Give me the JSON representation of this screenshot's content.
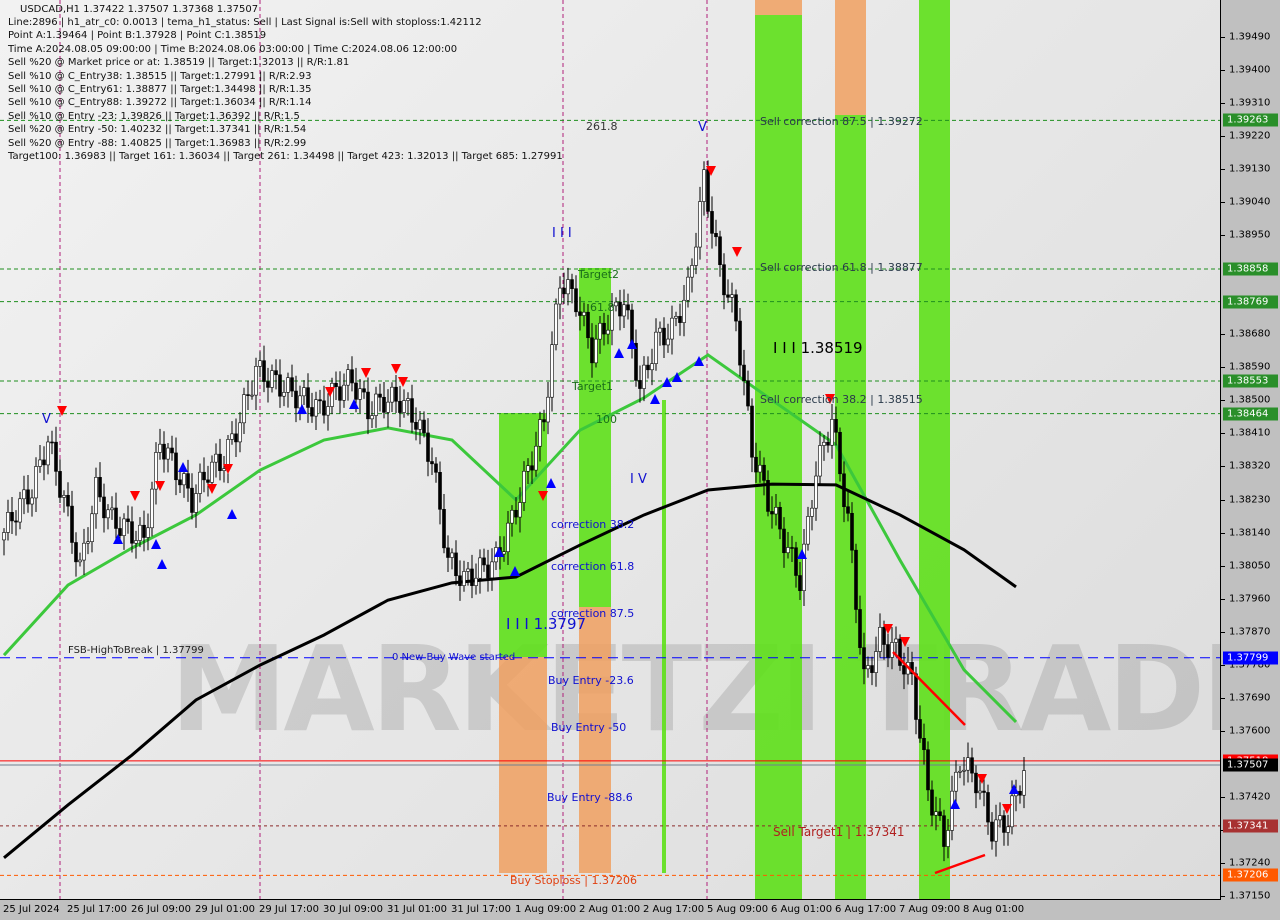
{
  "header": {
    "symbol_line": "USDCAD,H1  1.37422 1.37507 1.37368 1.37507",
    "info_lines": [
      "Line:2896 | h1_atr_c0: 0.0013 | tema_h1_status: Sell | Last Signal is:Sell with stoploss:1.42112",
      "Point A:1.39464 | Point B:1.37928 | Point C:1.38519",
      "Time A:2024.08.05 09:00:00 | Time B:2024.08.06 03:00:00 | Time C:2024.08.06 12:00:00",
      "Sell %20 @ Market price or at: 1.38519 || Target:1.32013 || R/R:1.81",
      "Sell %10 @ C_Entry38: 1.38515 || Target:1.27991 || R/R:2.93",
      "Sell %10 @ C_Entry61: 1.38877 || Target:1.34498 || R/R:1.35",
      "Sell %10 @ C_Entry88: 1.39272 || Target:1.36034 || R/R:1.14",
      "Sell %10 @ Entry -23: 1.39826 || Target:1.36392 || R/R:1.5",
      "Sell %20 @ Entry -50: 1.40232 || Target:1.37341 || R/R:1.54",
      "Sell %20 @ Entry -88: 1.40825 || Target:1.36983 || R/R:2.99",
      "Target100: 1.36983 || Target 161: 1.36034 || Target 261: 1.34498 || Target 423: 1.32013 || Target 685: 1.27991"
    ]
  },
  "watermark": "MARKETZI TRADE",
  "annotations": {
    "fib_261": "261.8",
    "wave_iii_top": "I I I",
    "target2": "Target2",
    "fib_618": "61.8",
    "target1": "Target1",
    "fib_100": "100",
    "wave_iv": "I V",
    "wave_v_left": "V",
    "wave_v_top": "V",
    "correction_382": "correction 38.2",
    "correction_618": "correction 61.8",
    "correction_875": "correction 87.5",
    "wave_iii_buy": "I I I 1.3797",
    "new_buy_wave": "0 New Buy Wave started",
    "fsb_high": "FSB-HighToBreak | 1.37799",
    "buy_entry_236": "Buy Entry -23.6",
    "buy_entry_50": "Buy Entry -50",
    "buy_entry_886": "Buy Entry -88.6",
    "buy_stoploss": "Buy Stoploss | 1.37206",
    "sell_target1": "Sell Target1 | 1.37341",
    "sell_corr_875": "Sell correction 87.5 | 1.39272",
    "sell_corr_618": "Sell correction 61.8 | 1.38877",
    "wave_iii_sell": "I I I 1.38519",
    "sell_corr_382": "Sell correction 38.2 | 1.38515"
  },
  "colors": {
    "background": "#e6e6e6",
    "zone_green": "#5ee01a",
    "zone_orange": "#f0a060",
    "ma_fast": "#3cc83c",
    "ma_slow": "#000000",
    "bull_candle": "#ffffff",
    "bear_candle": "#000000",
    "level_green": "#1f8f1f",
    "level_blue": "#0000ff",
    "current_price": "#000000",
    "red_line": "#ff0000",
    "stoploss": "#ff5a00",
    "sell_target": "#a83232"
  },
  "chart_data": {
    "type": "candlestick",
    "symbol": "USDCAD",
    "timeframe": "H1",
    "ylim": [
      1.3711,
      1.3955
    ],
    "grid": false,
    "y_ticks": [
      "1.39490",
      "1.39400",
      "1.39310",
      "1.39220",
      "1.39130",
      "1.39040",
      "1.38950",
      "1.38680",
      "1.38590",
      "1.38500",
      "1.38410",
      "1.38320",
      "1.38230",
      "1.38140",
      "1.38050",
      "1.37960",
      "1.37870",
      "1.37780",
      "1.37690",
      "1.37600",
      "1.37420",
      "1.37330",
      "1.37240",
      "1.37150"
    ],
    "x_ticks": [
      "25 Jul 2024",
      "25 Jul 17:00",
      "26 Jul 09:00",
      "29 Jul 01:00",
      "29 Jul 17:00",
      "30 Jul 09:00",
      "31 Jul 01:00",
      "31 Jul 17:00",
      "1 Aug 09:00",
      "2 Aug 01:00",
      "2 Aug 17:00",
      "5 Aug 09:00",
      "6 Aug 01:00",
      "6 Aug 17:00",
      "7 Aug 09:00",
      "8 Aug 01:00"
    ],
    "close_every_4_bars": [
      1.3812,
      1.38201,
      1.38256,
      1.38392,
      1.38229,
      1.38038,
      1.38256,
      1.38174,
      1.38147,
      1.3812,
      1.38392,
      1.3831,
      1.38229,
      1.3831,
      1.38338,
      1.38447,
      1.38583,
      1.38556,
      1.38528,
      1.38501,
      1.38474,
      1.38528,
      1.38556,
      1.38474,
      1.38501,
      1.38501,
      1.38447,
      1.38338,
      1.38065,
      1.38011,
      1.38038,
      1.38065,
      1.38174,
      1.3831,
      1.38447,
      1.38828,
      1.38774,
      1.38637,
      1.38719,
      1.38774,
      1.38528,
      1.38665,
      1.38692,
      1.38801,
      1.391,
      1.38855,
      1.38719,
      1.38365,
      1.38229,
      1.3812,
      1.38011,
      1.3831,
      1.38447,
      1.38174,
      1.37738,
      1.37847,
      1.3782,
      1.37738,
      1.37439,
      1.37302,
      1.3752,
      1.37466,
      1.3733,
      1.37357,
      1.37493
    ],
    "ma_fast_at_ticks": [
      1.37806,
      1.37997,
      1.38098,
      1.38188,
      1.3831,
      1.38392,
      1.38425,
      1.38392,
      1.38229,
      1.38419,
      1.38507,
      1.38624,
      1.38501,
      1.38379,
      1.38065,
      1.37766,
      1.37624
    ],
    "ma_slow_at_ticks": [
      1.37254,
      1.37398,
      1.37534,
      1.37684,
      1.37779,
      1.37861,
      1.37956,
      1.38003,
      1.38019,
      1.38106,
      1.38188,
      1.38256,
      1.38272,
      1.3827,
      1.38188,
      1.38093,
      1.37992
    ],
    "levels": [
      {
        "price": "1.39263",
        "style": "green-dashed"
      },
      {
        "price": "1.38858",
        "style": "green-dashed"
      },
      {
        "price": "1.38769",
        "style": "green-dashed"
      },
      {
        "price": "1.38553",
        "style": "green-dashed"
      },
      {
        "price": "1.38464",
        "style": "green-dashed"
      },
      {
        "price": "1.37799",
        "style": "blue-dashed"
      },
      {
        "price": "1.37518",
        "style": "red-solid"
      },
      {
        "price": "1.37507",
        "style": "current"
      },
      {
        "price": "1.37341",
        "style": "darkred-dotted"
      },
      {
        "price": "1.37206",
        "style": "orange-dashed"
      }
    ]
  }
}
